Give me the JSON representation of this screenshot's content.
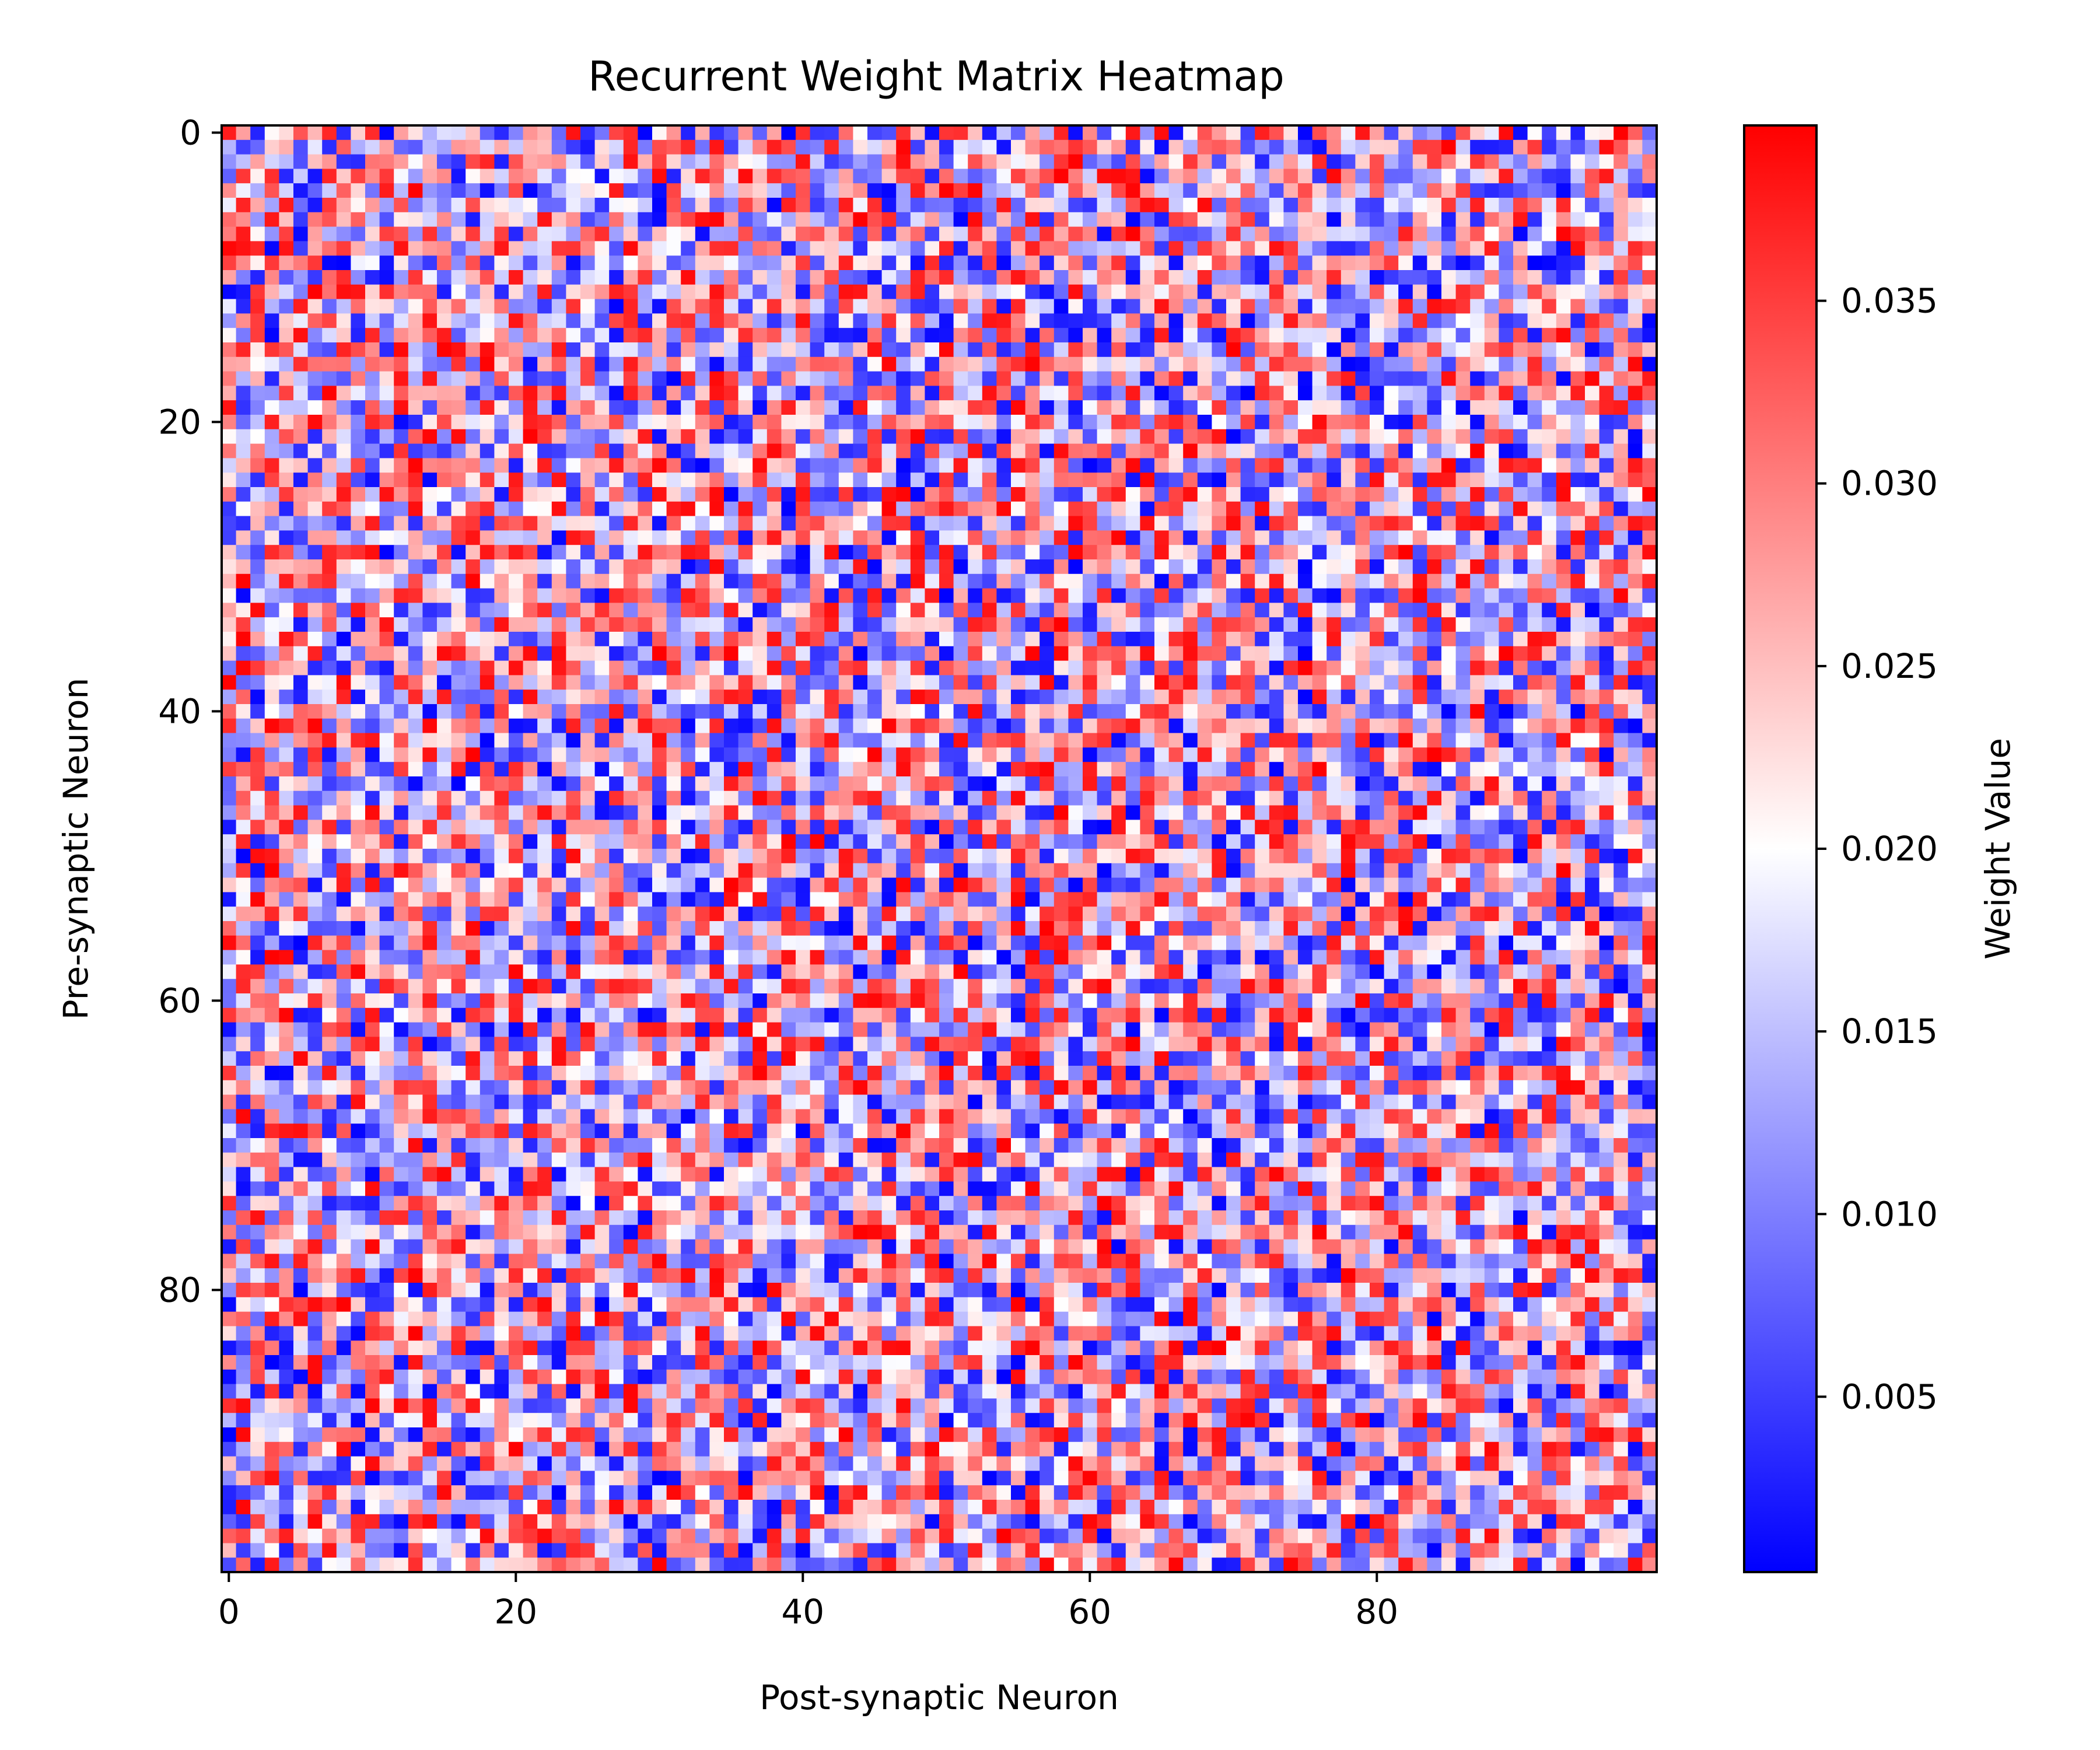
{
  "chart_data": {
    "type": "heatmap",
    "title": "Recurrent Weight Matrix Heatmap",
    "xlabel": "Post-synaptic Neuron",
    "ylabel": "Pre-synaptic Neuron",
    "rows": 100,
    "cols": 100,
    "x_ticks": [
      0,
      20,
      40,
      60,
      80
    ],
    "y_ticks": [
      0,
      20,
      40,
      60,
      80
    ],
    "colorbar": {
      "label": "Weight Value",
      "vmin": 0.0002,
      "vmax": 0.0398,
      "ticks": [
        0.005,
        0.01,
        0.015,
        0.02,
        0.025,
        0.03,
        0.035
      ],
      "tick_labels": [
        "0.005",
        "0.010",
        "0.015",
        "0.020",
        "0.025",
        "0.030",
        "0.035"
      ]
    },
    "colormap": {
      "name": "bwr",
      "low": "#0000ff",
      "mid": "#ffffff",
      "high": "#ff0000"
    },
    "value_distribution": "approximately uniform random between vmin and vmax; cell-level values not individually legible"
  }
}
